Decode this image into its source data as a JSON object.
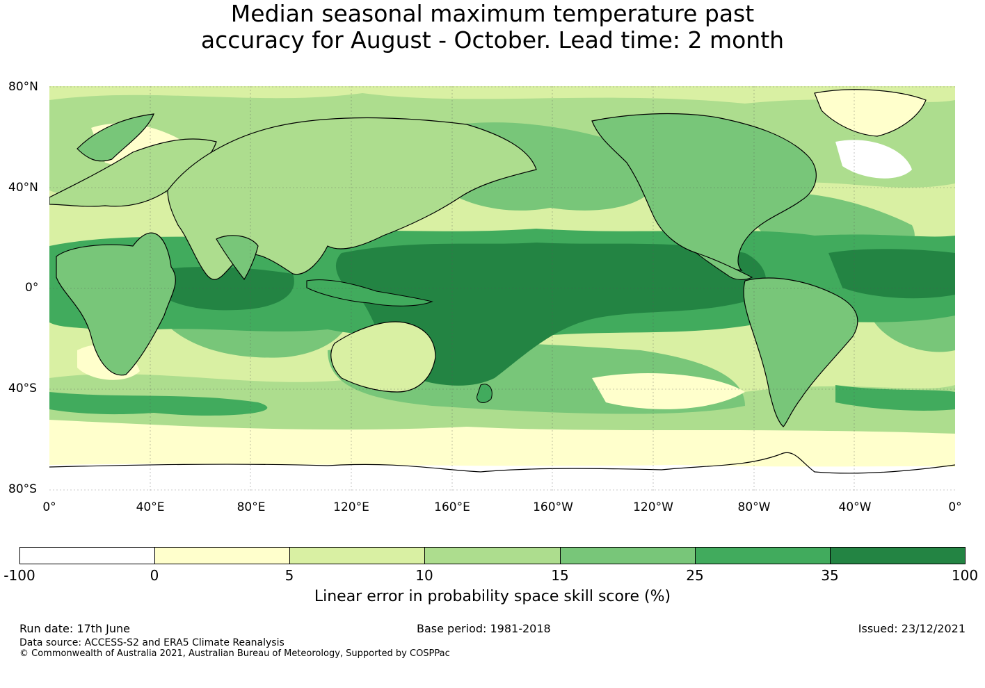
{
  "title": {
    "line1": "Median seasonal maximum temperature past",
    "line2": "accuracy for August - October. Lead time: 2 month"
  },
  "map": {
    "lat_labels": [
      "80°N",
      "40°N",
      "0°",
      "40°S",
      "80°S"
    ],
    "lon_labels": [
      "0°",
      "40°E",
      "80°E",
      "120°E",
      "160°E",
      "160°W",
      "120°W",
      "80°W",
      "40°W",
      "0°"
    ],
    "fill_colors": {
      "ocean_base": "#d9f0a3",
      "tropical_pacific": "#238443",
      "high_skill": "#41ab5d",
      "mid_skill": "#78c679",
      "low_skill": "#addd8e",
      "very_low": "#ffffcc",
      "negative": "#ffffff"
    },
    "coastline_color": "#000000"
  },
  "colorbar": {
    "ticks": [
      "-100",
      "0",
      "5",
      "10",
      "15",
      "25",
      "35",
      "100"
    ],
    "colors": [
      "#ffffff",
      "#ffffcc",
      "#d9f0a3",
      "#addd8e",
      "#78c679",
      "#41ab5d",
      "#238443"
    ],
    "label": "Linear error in probability space skill score (%)"
  },
  "footer": {
    "run_date": "Run date: 17th June",
    "base_period": "Base period: 1981-2018",
    "issued": "Issued: 23/12/2021",
    "data_source": "Data source: ACCESS-S2 and ERA5 Climate Reanalysis",
    "copyright": "© Commonwealth of Australia 2021, Australian Bureau of Meteorology, Supported by COSPPac"
  }
}
